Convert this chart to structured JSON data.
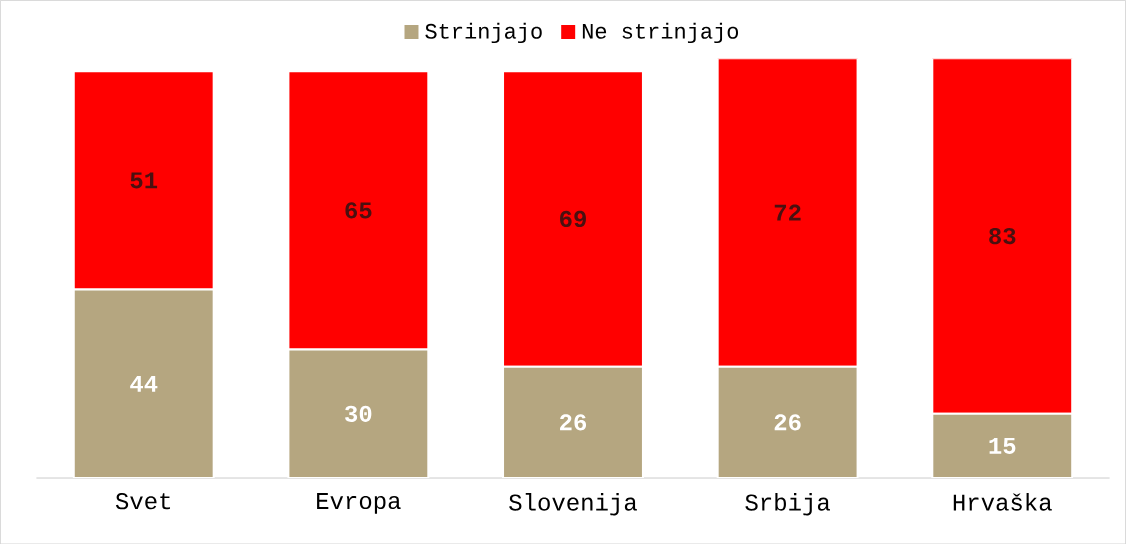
{
  "chart_data": {
    "type": "bar",
    "stacked": true,
    "categories": [
      "Svet",
      "Evropa",
      "Slovenija",
      "Srbija",
      "Hrvaška"
    ],
    "series": [
      {
        "name": "Strinjajo",
        "color": "#b5a680",
        "values": [
          44,
          30,
          26,
          26,
          15
        ]
      },
      {
        "name": "Ne strinjajo",
        "color": "#ff0000",
        "values": [
          51,
          65,
          69,
          72,
          83
        ]
      }
    ],
    "data_labels": true,
    "legend": "top"
  }
}
